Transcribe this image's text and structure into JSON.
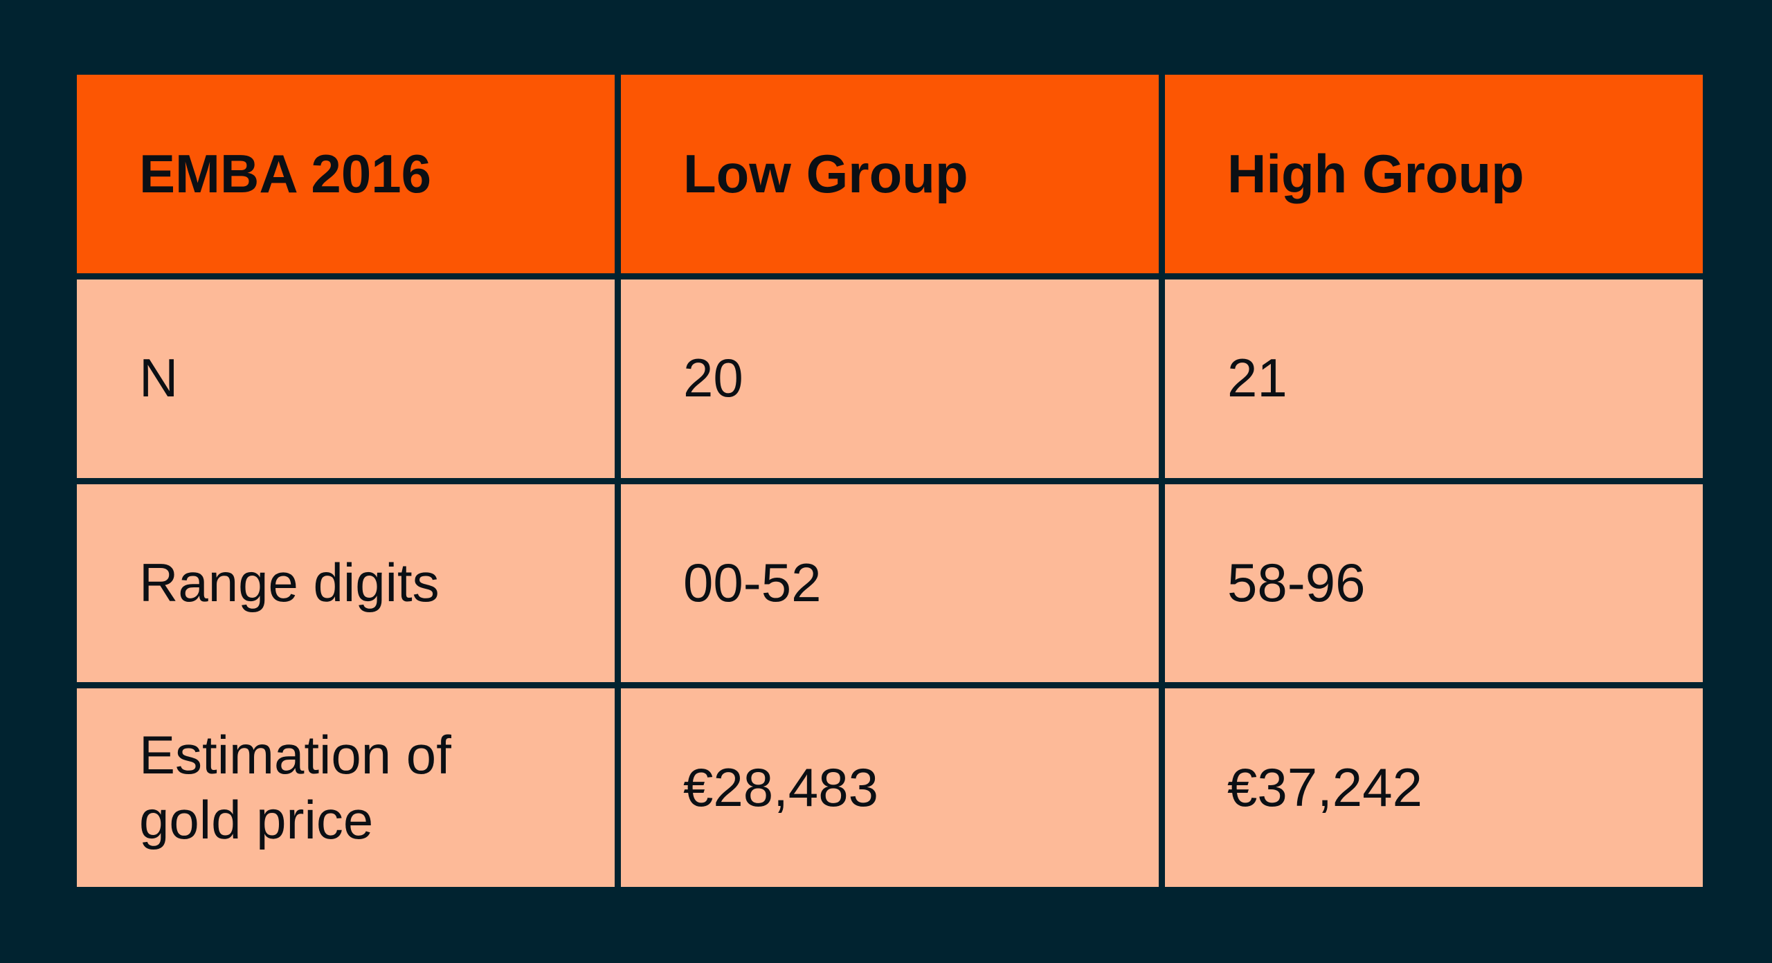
{
  "table": {
    "header": [
      "EMBA 2016",
      "Low Group",
      "High Group"
    ],
    "rows": [
      [
        "N",
        "20",
        "21"
      ],
      [
        "Range digits",
        "00-52",
        "58-96"
      ],
      [
        "Estimation of gold price",
        "€28,483",
        "€37,242"
      ]
    ]
  }
}
